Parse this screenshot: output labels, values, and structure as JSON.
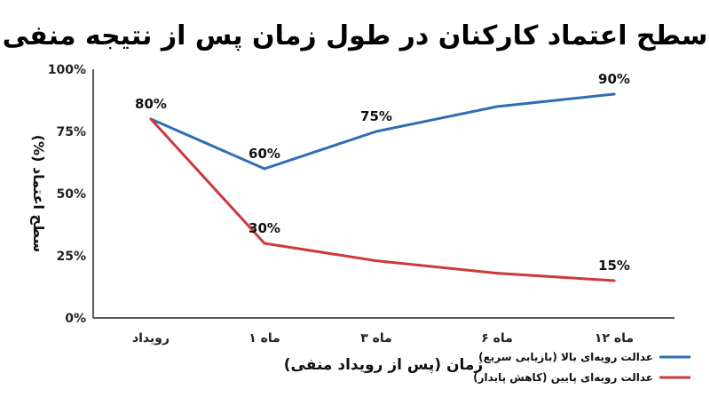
{
  "chart_data": {
    "type": "line",
    "title": "سطح اعتماد کارکنان در طول زمان پس از نتیجه منفی",
    "xlabel": "زمان (پس از رویداد منفی)",
    "ylabel": "سطح اعتماد (%)",
    "categories": [
      "رویداد",
      "ماه ۱",
      "ماه ۳",
      "ماه ۶",
      "ماه ۱۲"
    ],
    "yticks": [
      "0%",
      "25%",
      "50%",
      "75%",
      "100%"
    ],
    "ylim": [
      0,
      100
    ],
    "grid": false,
    "legend_position": "bottom-right",
    "series": [
      {
        "name": "عدالت رویه‌ای بالا (بازیابی سریع)",
        "color": "#2f6eb5",
        "values": [
          80,
          60,
          75,
          85,
          90
        ],
        "labels": [
          "80%",
          "60%",
          "75%",
          "",
          "90%"
        ]
      },
      {
        "name": "عدالت رویه‌ای پایین (کاهش پایدار)",
        "color": "#cc3a3a",
        "values": [
          80,
          30,
          23,
          18,
          15
        ],
        "labels": [
          "",
          "30%",
          "",
          "",
          "15%"
        ]
      }
    ]
  }
}
